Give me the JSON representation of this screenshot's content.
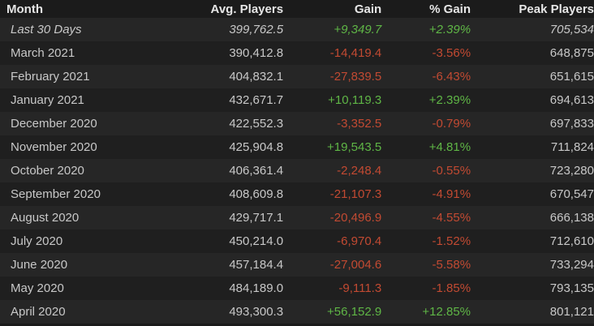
{
  "table": {
    "columns": [
      "Month",
      "Avg. Players",
      "Gain",
      "% Gain",
      "Peak Players"
    ],
    "rows": [
      [
        "Last 30 Days",
        "399,762.5",
        "+9,349.7",
        "+2.39%",
        "705,534"
      ],
      [
        "March 2021",
        "390,412.8",
        "-14,419.4",
        "-3.56%",
        "648,875"
      ],
      [
        "February 2021",
        "404,832.1",
        "-27,839.5",
        "-6.43%",
        "651,615"
      ],
      [
        "January 2021",
        "432,671.7",
        "+10,119.3",
        "+2.39%",
        "694,613"
      ],
      [
        "December 2020",
        "422,552.3",
        "-3,352.5",
        "-0.79%",
        "697,833"
      ],
      [
        "November 2020",
        "425,904.8",
        "+19,543.5",
        "+4.81%",
        "711,824"
      ],
      [
        "October 2020",
        "406,361.4",
        "-2,248.4",
        "-0.55%",
        "723,280"
      ],
      [
        "September 2020",
        "408,609.8",
        "-21,107.3",
        "-4.91%",
        "670,547"
      ],
      [
        "August 2020",
        "429,717.1",
        "-20,496.9",
        "-4.55%",
        "666,138"
      ],
      [
        "July 2020",
        "450,214.0",
        "-6,970.4",
        "-1.52%",
        "712,610"
      ],
      [
        "June 2020",
        "457,184.4",
        "-27,004.6",
        "-5.58%",
        "733,294"
      ],
      [
        "May 2020",
        "484,189.0",
        "-9,111.3",
        "-1.85%",
        "793,135"
      ],
      [
        "April 2020",
        "493,300.3",
        "+56,152.9",
        "+12.85%",
        "801,121"
      ]
    ]
  }
}
